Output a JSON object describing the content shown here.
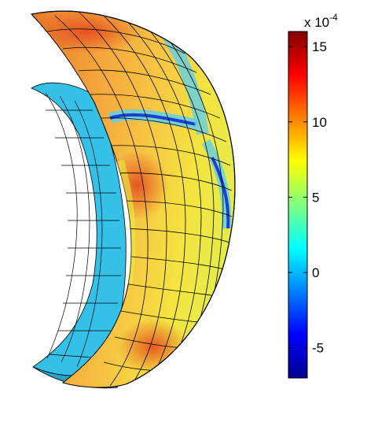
{
  "chart_data": {
    "type": "surface",
    "colormap": "jet",
    "colorbar": {
      "location": "right",
      "clim": [
        -7,
        16
      ],
      "ticks": [
        -5,
        0,
        5,
        10,
        15
      ],
      "tick_labels": [
        "-5",
        "0",
        "5",
        "10",
        "15"
      ],
      "multiplier_base": "x 10",
      "multiplier_exponent": "-4"
    },
    "surface": {
      "description_shape": "cut-away spherical shell",
      "outer_shell_value_range": [
        0,
        13
      ],
      "inner_shell_value": 2,
      "mesh_lines": true
    }
  }
}
